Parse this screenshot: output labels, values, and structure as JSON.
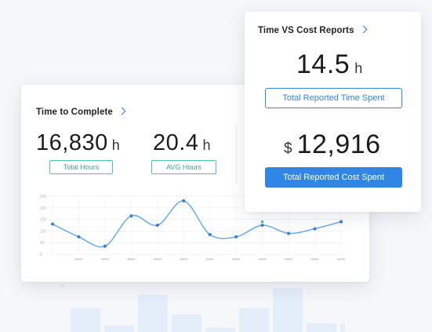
{
  "time_card": {
    "title": "Time to Complete",
    "total_hours": {
      "value": "16,830",
      "unit": "h",
      "label": "Total Hours"
    },
    "avg_hours": {
      "value": "20.4",
      "unit": "h",
      "label": "AVG Hours"
    }
  },
  "cost_card": {
    "title": "Time VS Cost Reports",
    "time_spent": {
      "value": "14.5",
      "unit": "h",
      "label": "Total Reported Time Spent"
    },
    "cost_spent": {
      "currency": "$",
      "value": "12,916",
      "label": "Total Reported Cost Spent"
    }
  },
  "colors": {
    "accent": "#2f86e6",
    "green": "#2bb184",
    "line": "#5aa8f2"
  },
  "chart_data": {
    "type": "line",
    "y_ticks": [
      "250",
      "200",
      "150",
      "100",
      "50",
      "0"
    ],
    "ylim": [
      0,
      250
    ],
    "x_labels": [
      "",
      "",
      "",
      "",
      "",
      "",
      "",
      "",
      "",
      "",
      "",
      ""
    ],
    "values": [
      130,
      75,
      35,
      165,
      125,
      230,
      85,
      75,
      125,
      90,
      110,
      140
    ],
    "grid": true
  },
  "bg_chart": {
    "y_tick": "80",
    "bars": [
      0.55,
      0.15,
      0.85,
      0.4,
      0.1,
      0.55,
      1.0,
      0.2,
      0.2
    ]
  }
}
